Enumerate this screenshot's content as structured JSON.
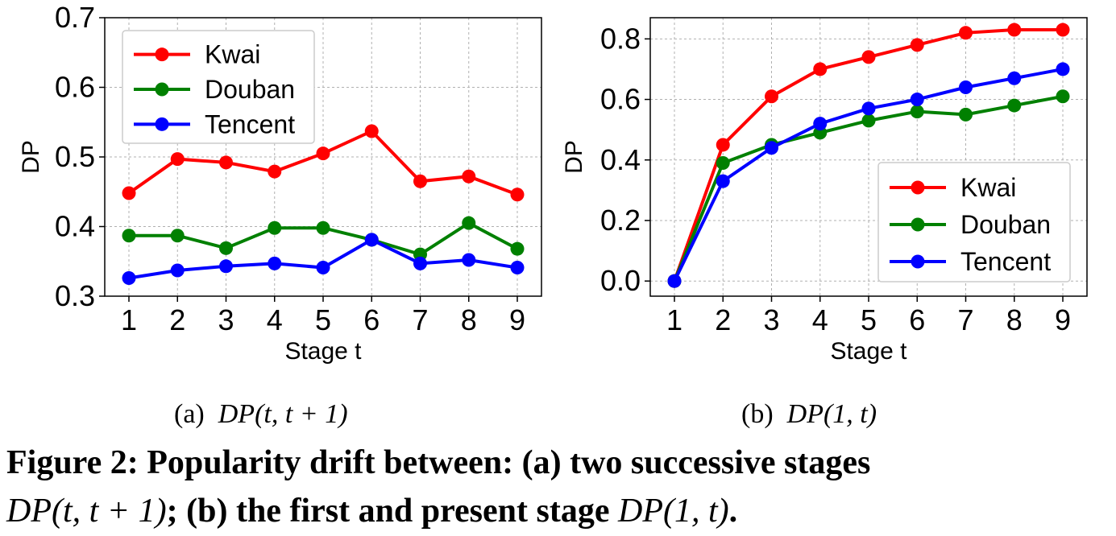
{
  "chart_data": [
    {
      "id": "a",
      "type": "line",
      "x": [
        1,
        2,
        3,
        4,
        5,
        6,
        7,
        8,
        9
      ],
      "xlabel": "Stage t",
      "ylabel": "DP",
      "ylim": [
        0.3,
        0.7
      ],
      "yticks": [
        "0.3",
        "0.4",
        "0.5",
        "0.6",
        "0.7"
      ],
      "xticks": [
        "1",
        "2",
        "3",
        "4",
        "5",
        "6",
        "7",
        "8",
        "9"
      ],
      "grid": true,
      "legend_position": "top-left",
      "series": [
        {
          "name": "Kwai",
          "color": "#ff0000",
          "values": [
            0.448,
            0.497,
            0.492,
            0.479,
            0.505,
            0.537,
            0.465,
            0.472,
            0.446
          ]
        },
        {
          "name": "Douban",
          "color": "#008000",
          "values": [
            0.387,
            0.387,
            0.369,
            0.398,
            0.398,
            0.381,
            0.36,
            0.405,
            0.368
          ]
        },
        {
          "name": "Tencent",
          "color": "#0000ff",
          "values": [
            0.326,
            0.337,
            0.343,
            0.347,
            0.341,
            0.381,
            0.347,
            0.352,
            0.341
          ]
        }
      ]
    },
    {
      "id": "b",
      "type": "line",
      "x": [
        1,
        2,
        3,
        4,
        5,
        6,
        7,
        8,
        9
      ],
      "xlabel": "Stage t",
      "ylabel": "DP",
      "ylim": [
        -0.05,
        0.87
      ],
      "yticks": [
        "0.0",
        "0.2",
        "0.4",
        "0.6",
        "0.8"
      ],
      "xticks": [
        "1",
        "2",
        "3",
        "4",
        "5",
        "6",
        "7",
        "8",
        "9"
      ],
      "grid": true,
      "legend_position": "bottom-right",
      "series": [
        {
          "name": "Kwai",
          "color": "#ff0000",
          "values": [
            0.0,
            0.45,
            0.61,
            0.7,
            0.74,
            0.78,
            0.82,
            0.83,
            0.83
          ]
        },
        {
          "name": "Douban",
          "color": "#008000",
          "values": [
            0.0,
            0.39,
            0.45,
            0.49,
            0.53,
            0.56,
            0.55,
            0.58,
            0.61
          ]
        },
        {
          "name": "Tencent",
          "color": "#0000ff",
          "values": [
            0.0,
            0.33,
            0.44,
            0.52,
            0.57,
            0.6,
            0.64,
            0.67,
            0.7
          ]
        }
      ]
    }
  ],
  "captions": {
    "sub_a_label": "(a)",
    "sub_a_math": "DP(t, t + 1)",
    "sub_b_label": "(b)",
    "sub_b_math": "DP(1, t)",
    "figure_line1": "Figure 2: Popularity drift between: (a) two successive stages",
    "figure_line2_math1": "DP(t, t + 1)",
    "figure_line2_text": "; (b) the first and present stage ",
    "figure_line2_math2": "DP(1, t)",
    "figure_line2_end": "."
  }
}
